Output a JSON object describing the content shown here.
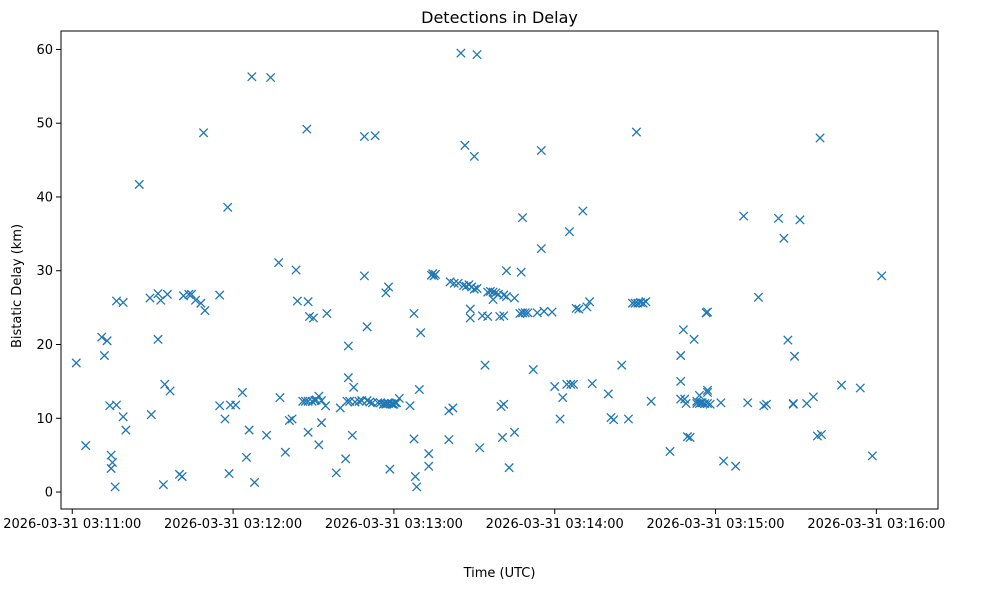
{
  "chart_data": {
    "type": "scatter",
    "title": "Detections in Delay",
    "xlabel": "Time (UTC)",
    "ylabel": "Bistatic Delay (km)",
    "x_unit": "seconds after 2026-03-31 03:11:00",
    "xlim": [
      -4.2,
      323
    ],
    "ylim": [
      -2.3,
      62.5
    ],
    "x_ticks": [
      0,
      60,
      120,
      180,
      240,
      300
    ],
    "x_tick_labels": [
      "2026-03-31 03:11:00",
      "2026-03-31 03:12:00",
      "2026-03-31 03:13:00",
      "2026-03-31 03:14:00",
      "2026-03-31 03:15:00",
      "2026-03-31 03:16:00"
    ],
    "y_ticks": [
      0,
      10,
      20,
      30,
      40,
      50,
      60
    ],
    "y_tick_labels": [
      "0",
      "10",
      "20",
      "30",
      "40",
      "50",
      "60"
    ],
    "marker": "x",
    "color": "#1f77b4",
    "grid": false,
    "series": [
      {
        "name": "detections",
        "points": [
          [
            1.5,
            17.5
          ],
          [
            5,
            6.3
          ],
          [
            11,
            21
          ],
          [
            12,
            18.5
          ],
          [
            13,
            20.5
          ],
          [
            14,
            11.7
          ],
          [
            14.5,
            5
          ],
          [
            14.5,
            3.2
          ],
          [
            15,
            4
          ],
          [
            16,
            0.7
          ],
          [
            16.5,
            11.8
          ],
          [
            16.5,
            25.9
          ],
          [
            19,
            10.2
          ],
          [
            19,
            25.7
          ],
          [
            20,
            8.4
          ],
          [
            25,
            41.7
          ],
          [
            29,
            26.3
          ],
          [
            29.5,
            10.5
          ],
          [
            32,
            20.7
          ],
          [
            32,
            26.9
          ],
          [
            33,
            26
          ],
          [
            34,
            1
          ],
          [
            34.5,
            14.6
          ],
          [
            35.5,
            26.8
          ],
          [
            36.5,
            13.7
          ],
          [
            40,
            2.4
          ],
          [
            41,
            2.1
          ],
          [
            41.5,
            26.6
          ],
          [
            43.5,
            26.8
          ],
          [
            44.5,
            26.8
          ],
          [
            46,
            26
          ],
          [
            48,
            25.6
          ],
          [
            49,
            48.7
          ],
          [
            49.5,
            24.6
          ],
          [
            55,
            11.7
          ],
          [
            55,
            26.7
          ],
          [
            57,
            9.9
          ],
          [
            58,
            38.6
          ],
          [
            58.5,
            2.5
          ],
          [
            59,
            11.8
          ],
          [
            61,
            11.8
          ],
          [
            63.5,
            13.5
          ],
          [
            65,
            4.7
          ],
          [
            66,
            8.4
          ],
          [
            67,
            56.3
          ],
          [
            68,
            1.3
          ],
          [
            72.5,
            7.7
          ],
          [
            74,
            56.2
          ],
          [
            77,
            31.1
          ],
          [
            77.5,
            12.8
          ],
          [
            79.5,
            5.4
          ],
          [
            81,
            9.7
          ],
          [
            82,
            9.9
          ],
          [
            83.5,
            30.1
          ],
          [
            84,
            25.9
          ],
          [
            86,
            12.3
          ],
          [
            87,
            12.3
          ],
          [
            87.5,
            49.2
          ],
          [
            88,
            12.3
          ],
          [
            88,
            25.8
          ],
          [
            88,
            8.1
          ],
          [
            88.5,
            23.8
          ],
          [
            89.5,
            12.3
          ],
          [
            90,
            23.6
          ],
          [
            90.5,
            12.4
          ],
          [
            91,
            12.5
          ],
          [
            92,
            13
          ],
          [
            92,
            6.4
          ],
          [
            93,
            9.4
          ],
          [
            93,
            12.4
          ],
          [
            94.5,
            11.7
          ],
          [
            95,
            24.2
          ],
          [
            98.5,
            2.6
          ],
          [
            100,
            11.4
          ],
          [
            102,
            4.5
          ],
          [
            102.5,
            12.3
          ],
          [
            103,
            19.8
          ],
          [
            103,
            15.5
          ],
          [
            103.5,
            12.3
          ],
          [
            104.5,
            7.7
          ],
          [
            105,
            14.2
          ],
          [
            105.5,
            12.2
          ],
          [
            107,
            12.3
          ],
          [
            108,
            12.4
          ],
          [
            109,
            48.2
          ],
          [
            109,
            29.3
          ],
          [
            110,
            22.4
          ],
          [
            110,
            12.4
          ],
          [
            111,
            12.2
          ],
          [
            112,
            12.1
          ],
          [
            113,
            48.3
          ],
          [
            114,
            12.1
          ],
          [
            115,
            12.1
          ],
          [
            116,
            11.9
          ],
          [
            116.5,
            12
          ],
          [
            117,
            11.9
          ],
          [
            117,
            27
          ],
          [
            117.5,
            12
          ],
          [
            118,
            12
          ],
          [
            118,
            27.8
          ],
          [
            118.5,
            3.1
          ],
          [
            119,
            12
          ],
          [
            119.5,
            11.9
          ],
          [
            120,
            11.9
          ],
          [
            120.5,
            12.1
          ],
          [
            121,
            12.1
          ],
          [
            122,
            12.7
          ],
          [
            126,
            11.7
          ],
          [
            127.5,
            24.2
          ],
          [
            127.5,
            7.2
          ],
          [
            128,
            2.1
          ],
          [
            128.5,
            0.7
          ],
          [
            129.5,
            13.9
          ],
          [
            130,
            21.6
          ],
          [
            133,
            3.5
          ],
          [
            133,
            5.2
          ],
          [
            134,
            29.4
          ],
          [
            134.5,
            29.6
          ],
          [
            135,
            29.3
          ],
          [
            135.5,
            29.5
          ],
          [
            140.5,
            11
          ],
          [
            140.5,
            7.1
          ],
          [
            141,
            28.5
          ],
          [
            142,
            11.4
          ],
          [
            142.5,
            28.3
          ],
          [
            144,
            28.3
          ],
          [
            145,
            59.5
          ],
          [
            146,
            28
          ],
          [
            146.5,
            47
          ],
          [
            147,
            27.9
          ],
          [
            148,
            28.1
          ],
          [
            148.5,
            24.8
          ],
          [
            148.5,
            23.6
          ],
          [
            149,
            27.8
          ],
          [
            150,
            45.5
          ],
          [
            150,
            27.5
          ],
          [
            151,
            59.3
          ],
          [
            151,
            27.6
          ],
          [
            152,
            6
          ],
          [
            153,
            23.9
          ],
          [
            154,
            17.2
          ],
          [
            155,
            27.1
          ],
          [
            155,
            23.8
          ],
          [
            156,
            27.2
          ],
          [
            157,
            26.1
          ],
          [
            157,
            27.1
          ],
          [
            158,
            27
          ],
          [
            159,
            26.8
          ],
          [
            159.5,
            23.8
          ],
          [
            160,
            11.6
          ],
          [
            160.5,
            7.4
          ],
          [
            161,
            11.9
          ],
          [
            161,
            23.9
          ],
          [
            161,
            26.7
          ],
          [
            162,
            26.5
          ],
          [
            162,
            30
          ],
          [
            163,
            3.3
          ],
          [
            165,
            8.1
          ],
          [
            165,
            26.3
          ],
          [
            167,
            24.2
          ],
          [
            167.5,
            29.8
          ],
          [
            168,
            24.3
          ],
          [
            168,
            37.2
          ],
          [
            169,
            24.3
          ],
          [
            170,
            24.3
          ],
          [
            172,
            16.6
          ],
          [
            173.5,
            24.3
          ],
          [
            175,
            33
          ],
          [
            175,
            46.3
          ],
          [
            176,
            24.5
          ],
          [
            179,
            24.4
          ],
          [
            180,
            14.3
          ],
          [
            182,
            9.9
          ],
          [
            183,
            12.8
          ],
          [
            184.5,
            14.6
          ],
          [
            185.5,
            35.3
          ],
          [
            186,
            14.6
          ],
          [
            187,
            14.6
          ],
          [
            188,
            24.9
          ],
          [
            189,
            24.8
          ],
          [
            190.5,
            38.1
          ],
          [
            192,
            25.1
          ],
          [
            193,
            25.8
          ],
          [
            194,
            14.7
          ],
          [
            200,
            13.3
          ],
          [
            201,
            10.1
          ],
          [
            202,
            9.8
          ],
          [
            205,
            17.2
          ],
          [
            207.5,
            9.9
          ],
          [
            209,
            25.6
          ],
          [
            210,
            25.6
          ],
          [
            210.5,
            48.8
          ],
          [
            211,
            25.6
          ],
          [
            212,
            25.7
          ],
          [
            213,
            25.6
          ],
          [
            214,
            25.8
          ],
          [
            216,
            12.3
          ],
          [
            223,
            5.5
          ],
          [
            227,
            18.5
          ],
          [
            227,
            12.6
          ],
          [
            227,
            15
          ],
          [
            228,
            22
          ],
          [
            228.5,
            12.6
          ],
          [
            229,
            12
          ],
          [
            229.5,
            7.5
          ],
          [
            230.5,
            7.4
          ],
          [
            232,
            20.7
          ],
          [
            233,
            12
          ],
          [
            233,
            12.3
          ],
          [
            234,
            13.1
          ],
          [
            234,
            12
          ],
          [
            234.5,
            12.1
          ],
          [
            235,
            12.1
          ],
          [
            236,
            12
          ],
          [
            236.5,
            24.3
          ],
          [
            237,
            24.4
          ],
          [
            237,
            13.5
          ],
          [
            237,
            13.8
          ],
          [
            237,
            12
          ],
          [
            238,
            11.9
          ],
          [
            242,
            12.1
          ],
          [
            243,
            4.2
          ],
          [
            247.5,
            3.5
          ],
          [
            250.5,
            37.4
          ],
          [
            252,
            12.1
          ],
          [
            256,
            26.4
          ],
          [
            258,
            11.7
          ],
          [
            259,
            11.9
          ],
          [
            263.5,
            37.1
          ],
          [
            265.5,
            34.4
          ],
          [
            267,
            20.6
          ],
          [
            269,
            12
          ],
          [
            269,
            11.9
          ],
          [
            269.5,
            18.4
          ],
          [
            271.5,
            36.9
          ],
          [
            274,
            12
          ],
          [
            276.5,
            12.9
          ],
          [
            278,
            7.6
          ],
          [
            279,
            48
          ],
          [
            279.5,
            7.8
          ],
          [
            287,
            14.5
          ],
          [
            294,
            14.1
          ],
          [
            298.5,
            4.9
          ],
          [
            302,
            29.3
          ]
        ]
      }
    ]
  }
}
